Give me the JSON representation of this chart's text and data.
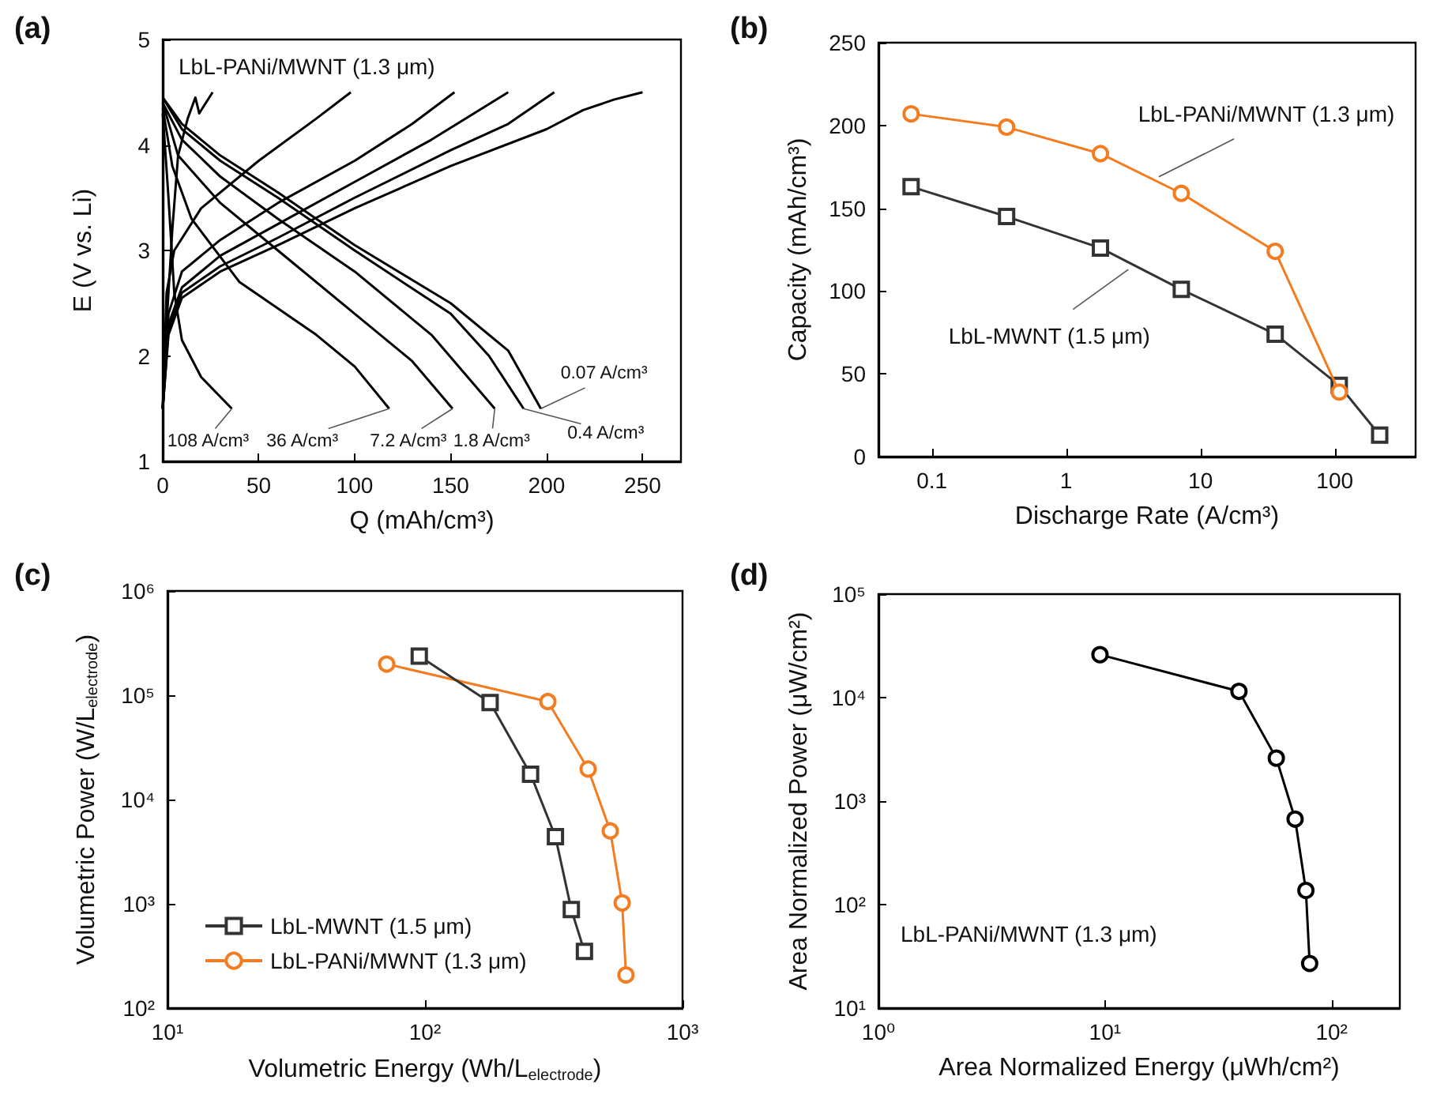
{
  "chart_data": [
    {
      "type": "line",
      "title": "(a)",
      "xlabel": "Q (mAh/cm³)",
      "ylabel": "E (V vs. Li)",
      "xlim": [
        0,
        270
      ],
      "ylim": [
        1,
        5
      ],
      "xticks": [
        0,
        50,
        100,
        150,
        200,
        250
      ],
      "yticks": [
        1,
        2,
        3,
        4,
        5
      ],
      "marker": "none",
      "annotations": [
        "LbL-PANi/MWNT (1.3 μm)",
        {
          "text": "108 A/cm³",
          "x": 36,
          "y": 1.5
        },
        {
          "text": "36 A/cm³",
          "x": 118,
          "y": 1.5
        },
        {
          "text": "7.2 A/cm³",
          "x": 151,
          "y": 1.5
        },
        {
          "text": "1.8 A/cm³",
          "x": 173,
          "y": 1.5
        },
        {
          "text": "0.4 A/cm³",
          "x": 188,
          "y": 1.5
        },
        {
          "text": "0.07 A/cm³",
          "x": 197,
          "y": 1.5
        }
      ],
      "series": [
        {
          "color": "#000000",
          "x": [
            0,
            3,
            10,
            30,
            60,
            100,
            150,
            200,
            219,
            235,
            250
          ],
          "values": [
            1.5,
            2.2,
            2.55,
            2.8,
            3.05,
            3.4,
            3.8,
            4.15,
            4.33,
            4.43,
            4.5
          ]
        },
        {
          "color": "#000000",
          "x": [
            0,
            3,
            10,
            30,
            60,
            100,
            150,
            180,
            204
          ],
          "values": [
            1.5,
            2.25,
            2.6,
            2.85,
            3.12,
            3.5,
            3.95,
            4.2,
            4.5
          ]
        },
        {
          "color": "#000000",
          "x": [
            0,
            3,
            10,
            30,
            60,
            100,
            140,
            180
          ],
          "values": [
            1.5,
            2.3,
            2.65,
            2.95,
            3.25,
            3.65,
            4.05,
            4.5
          ]
        },
        {
          "color": "#000000",
          "x": [
            0,
            3,
            10,
            30,
            60,
            100,
            130,
            152
          ],
          "values": [
            1.5,
            2.4,
            2.8,
            3.1,
            3.45,
            3.85,
            4.2,
            4.5
          ]
        },
        {
          "color": "#000000",
          "x": [
            0,
            2,
            6,
            20,
            50,
            80,
            98
          ],
          "values": [
            1.5,
            2.6,
            3.0,
            3.4,
            3.85,
            4.25,
            4.5
          ]
        },
        {
          "color": "#000000",
          "x": [
            0,
            2,
            5,
            8,
            13,
            17,
            19,
            26
          ],
          "values": [
            1.5,
            2.3,
            3.2,
            3.9,
            4.25,
            4.45,
            4.3,
            4.5
          ]
        },
        {
          "color": "#000000",
          "x": [
            0,
            10,
            30,
            60,
            80,
            100,
            150,
            180,
            197
          ],
          "values": [
            4.45,
            4.2,
            3.9,
            3.55,
            3.3,
            3.05,
            2.5,
            2.05,
            1.5
          ]
        },
        {
          "color": "#000000",
          "x": [
            0,
            10,
            30,
            60,
            100,
            150,
            170,
            188
          ],
          "values": [
            4.45,
            4.15,
            3.85,
            3.5,
            3.0,
            2.4,
            2.0,
            1.5
          ]
        },
        {
          "color": "#000000",
          "x": [
            0,
            10,
            30,
            60,
            100,
            140,
            173
          ],
          "values": [
            4.4,
            4.05,
            3.7,
            3.3,
            2.8,
            2.2,
            1.5
          ]
        },
        {
          "color": "#000000",
          "x": [
            0,
            8,
            30,
            60,
            100,
            130,
            151
          ],
          "values": [
            4.4,
            3.9,
            3.45,
            3.0,
            2.4,
            1.95,
            1.5
          ]
        },
        {
          "color": "#000000",
          "x": [
            0,
            5,
            15,
            40,
            80,
            100,
            118
          ],
          "values": [
            4.35,
            3.8,
            3.3,
            2.7,
            2.2,
            1.9,
            1.5
          ]
        },
        {
          "color": "#000000",
          "x": [
            0,
            3,
            6,
            10,
            20,
            36
          ],
          "values": [
            4.3,
            3.5,
            2.6,
            2.15,
            1.8,
            1.5
          ]
        }
      ]
    },
    {
      "type": "line",
      "title": "(b)",
      "xlabel": "Discharge Rate (A/cm³)",
      "ylabel": "Capacity (mAh/cm³)",
      "log": "x",
      "xlim": [
        0.04,
        400
      ],
      "ylim": [
        0,
        250
      ],
      "xticks": [
        0.1,
        1,
        10,
        100
      ],
      "yticks": [
        0,
        50,
        100,
        150,
        200,
        250
      ],
      "annotations": [
        {
          "text": "LbL-PANi/MWNT (1.3 μm)",
          "x": 4.9,
          "y": 169
        },
        {
          "text": "LbL-MWNT (1.5 μm)",
          "x": 2.9,
          "y": 113
        }
      ],
      "series": [
        {
          "color": "#f47c20",
          "marker": "circle",
          "x": [
            0.07,
            0.36,
            1.8,
            7.2,
            36,
            108
          ],
          "values": [
            207,
            199,
            183,
            159,
            124,
            39
          ]
        },
        {
          "color": "#333333",
          "marker": "square",
          "x": [
            0.07,
            0.36,
            1.8,
            7.2,
            36,
            108,
            216
          ],
          "values": [
            163,
            145,
            126,
            101,
            74,
            43,
            13
          ]
        }
      ]
    },
    {
      "type": "line",
      "title": "(c)",
      "xlabel": "Volumetric Energy (Wh/L$_{electrode}$)",
      "ylabel": "Volumetric Power (W/L$_{electrode}$)",
      "log": "xy",
      "xlim": [
        10,
        1000
      ],
      "ylim": [
        100,
        1000000
      ],
      "xticks": [
        {
          "value": 10,
          "label": "10¹"
        },
        {
          "value": 100,
          "label": "10²"
        },
        {
          "value": 1000,
          "label": "10³"
        }
      ],
      "yticks": [
        {
          "value": 100,
          "label": "10²"
        },
        {
          "value": 1000,
          "label": "10³"
        },
        {
          "value": 10000,
          "label": "10⁴"
        },
        {
          "value": 100000,
          "label": "10⁵"
        },
        {
          "value": 1000000,
          "label": "10⁶"
        }
      ],
      "legend": "bottom left",
      "series": [
        {
          "name": "LbL-MWNT (1.5 μm)",
          "color": "#333333",
          "marker": "square",
          "x": [
            95,
            179,
            257,
            321,
            370,
            416
          ],
          "values": [
            237000,
            85000,
            17500,
            4400,
            880,
            350
          ]
        },
        {
          "name": "LbL-PANi/MWNT (1.3 μm)",
          "color": "#f47c20",
          "marker": "circle",
          "x": [
            71,
            300,
            430,
            524,
            583,
            603
          ],
          "values": [
            199000,
            87000,
            19600,
            5000,
            1020,
            208
          ]
        }
      ]
    },
    {
      "type": "line",
      "title": "(d)",
      "xlabel": "Area Normalized Energy (μWh/cm²)",
      "ylabel": "Area Normalized Power (μW/cm²)",
      "log": "xy",
      "xlim": [
        1,
        200
      ],
      "ylim": [
        10,
        100000
      ],
      "marker": "circle",
      "xticks": [
        {
          "value": 1,
          "label": "10⁰"
        },
        {
          "value": 10,
          "label": "10¹"
        },
        {
          "value": 100,
          "label": "10²"
        }
      ],
      "yticks": [
        {
          "value": 10,
          "label": "10¹"
        },
        {
          "value": 100,
          "label": "10²"
        },
        {
          "value": 1000,
          "label": "10³"
        },
        {
          "value": 10000,
          "label": "10⁴"
        },
        {
          "value": 100000,
          "label": "10⁵"
        }
      ],
      "annotations": [
        "LbL-PANi/MWNT (1.3 μm)"
      ],
      "series": [
        {
          "color": "#000000",
          "x": [
            9.5,
            39,
            57,
            69,
            77,
            80
          ],
          "values": [
            26000,
            11500,
            2600,
            670,
            137,
            27
          ]
        }
      ]
    }
  ]
}
